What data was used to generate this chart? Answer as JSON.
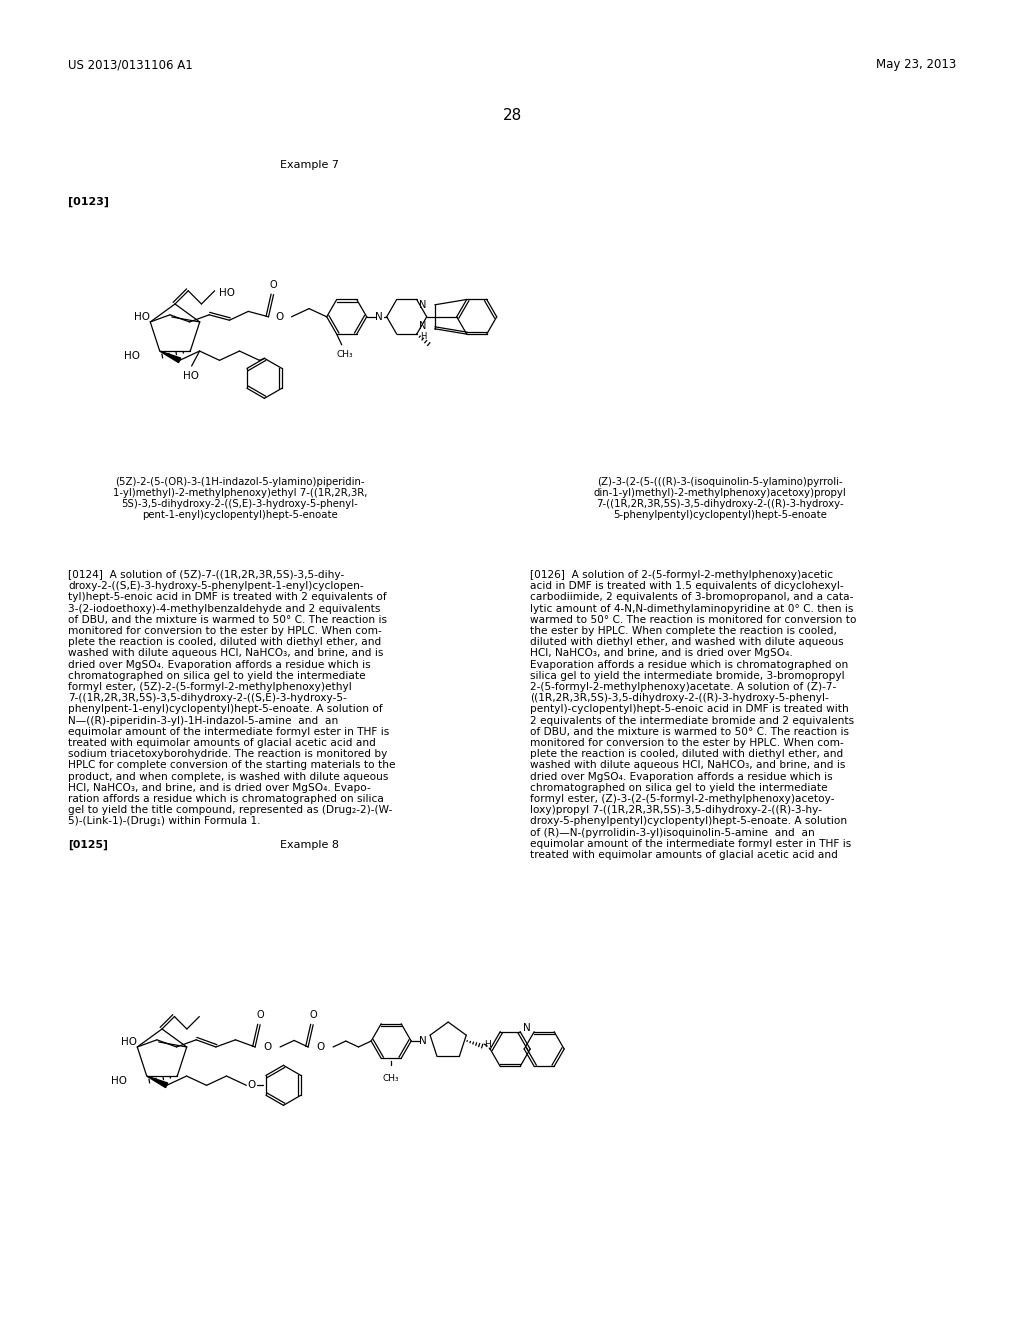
{
  "page_number": "28",
  "header_left": "US 2013/0131106 A1",
  "header_right": "May 23, 2013",
  "example7_label": "Example 7",
  "para123": "[0123]",
  "para124_label": "[0124]",
  "para125_label": "[0125]",
  "example8_label": "Example 8",
  "para126_label": "[0126]",
  "compound1_name_lines": [
    "(5Z)-2-(5-(OR)-3-(1H-indazol-5-ylamino)piperidin-",
    "1-yl)methyl)-2-methylphenoxy)ethyl 7-((1R,2R,3R,",
    "5S)-3,5-dihydroxy-2-((S,E)-3-hydroxy-5-phenyl-",
    "pent-1-enyl)cyclopentyl)hept-5-enoate"
  ],
  "compound2_name_lines": [
    "(Z)-3-(2-(5-(((R)-3-(isoquinolin-5-ylamino)pyrroli-",
    "din-1-yl)methyl)-2-methylphenoxy)acetoxy)propyl",
    "7-((1R,2R,3R,5S)-3,5-dihydroxy-2-((R)-3-hydroxy-",
    "5-phenylpentyl)cyclopentyl)hept-5-enoate"
  ],
  "col1_lines_124": [
    "[0124]  A solution of (5Z)-7-((1R,2R,3R,5S)-3,5-dihy-",
    "droxy-2-((S,E)-3-hydroxy-5-phenylpent-1-enyl)cyclopen-",
    "tyl)hept-5-enoic acid in DMF is treated with 2 equivalents of",
    "3-(2-iodoethoxy)-4-methylbenzaldehyde and 2 equivalents",
    "of DBU, and the mixture is warmed to 50° C. The reaction is",
    "monitored for conversion to the ester by HPLC. When com-",
    "plete the reaction is cooled, diluted with diethyl ether, and",
    "washed with dilute aqueous HCl, NaHCO₃, and brine, and is",
    "dried over MgSO₄. Evaporation affords a residue which is",
    "chromatographed on silica gel to yield the intermediate",
    "formyl ester, (5Z)-2-(5-formyl-2-methylphenoxy)ethyl",
    "7-((1R,2R,3R,5S)-3,5-dihydroxy-2-((S,E)-3-hydroxy-5-",
    "phenylpent-1-enyl)cyclopentyl)hept-5-enoate. A solution of",
    "N—((R)-piperidin-3-yl)-1H-indazol-5-amine  and  an",
    "equimolar amount of the intermediate formyl ester in THF is",
    "treated with equimolar amounts of glacial acetic acid and",
    "sodium triacetoxyborohydride. The reaction is monitored by",
    "HPLC for complete conversion of the starting materials to the",
    "product, and when complete, is washed with dilute aqueous",
    "HCl, NaHCO₃, and brine, and is dried over MgSO₄. Evapo-",
    "ration affords a residue which is chromatographed on silica",
    "gel to yield the title compound, represented as (Drug₂-2)-(W-",
    "5)-(Link-1)-(Drug₁) within Formula 1."
  ],
  "col2_lines_126": [
    "[0126]  A solution of 2-(5-formyl-2-methylphenoxy)acetic",
    "acid in DMF is treated with 1.5 equivalents of dicyclohexyl-",
    "carbodiimide, 2 equivalents of 3-bromopropanol, and a cata-",
    "lytic amount of 4-N,N-dimethylaminopyridine at 0° C. then is",
    "warmed to 50° C. The reaction is monitored for conversion to",
    "the ester by HPLC. When complete the reaction is cooled,",
    "diluted with diethyl ether, and washed with dilute aqueous",
    "HCl, NaHCO₃, and brine, and is dried over MgSO₄.",
    "Evaporation affords a residue which is chromatographed on",
    "silica gel to yield the intermediate bromide, 3-bromopropyl",
    "2-(5-formyl-2-methylphenoxy)acetate. A solution of (Z)-7-",
    "((1R,2R,3R,5S)-3,5-dihydroxy-2-((R)-3-hydroxy-5-phenyl-",
    "pentyl)-cyclopentyl)hept-5-enoic acid in DMF is treated with",
    "2 equivalents of the intermediate bromide and 2 equivalents",
    "of DBU, and the mixture is warmed to 50° C. The reaction is",
    "monitored for conversion to the ester by HPLC. When com-",
    "plete the reaction is cooled, diluted with diethyl ether, and",
    "washed with dilute aqueous HCl, NaHCO₃, and brine, and is",
    "dried over MgSO₄. Evaporation affords a residue which is",
    "chromatographed on silica gel to yield the intermediate",
    "formyl ester, (Z)-3-(2-(5-formyl-2-methylphenoxy)acetoy-",
    "loxy)propyl 7-((1R,2R,3R,5S)-3,5-dihydroxy-2-((R)-3-hy-",
    "droxy-5-phenylpentyl)cyclopentyl)hept-5-enoate. A solution",
    "of (R)—N-(pyrrolidin-3-yl)isoquinolin-5-amine  and  an",
    "equimolar amount of the intermediate formyl ester in THF is",
    "treated with equimolar amounts of glacial acetic acid and"
  ],
  "background_color": "#ffffff",
  "text_color": "#000000"
}
